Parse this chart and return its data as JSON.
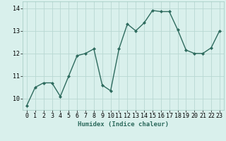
{
  "x": [
    0,
    1,
    2,
    3,
    4,
    5,
    6,
    7,
    8,
    9,
    10,
    11,
    12,
    13,
    14,
    15,
    16,
    17,
    18,
    19,
    20,
    21,
    22,
    23
  ],
  "y": [
    9.7,
    10.5,
    10.7,
    10.7,
    10.1,
    11.0,
    11.9,
    12.0,
    12.2,
    10.6,
    10.35,
    12.2,
    13.3,
    13.0,
    13.35,
    13.9,
    13.85,
    13.85,
    13.05,
    12.15,
    12.0,
    12.0,
    12.25,
    13.0
  ],
  "line_color": "#2e6b5e",
  "marker": "D",
  "marker_size": 2.0,
  "linewidth": 1.0,
  "bg_color": "#d9f0ec",
  "grid_color": "#b8d8d2",
  "xlabel": "Humidex (Indice chaleur)",
  "ylim": [
    9.5,
    14.3
  ],
  "yticks": [
    10,
    11,
    12,
    13,
    14
  ],
  "xticks": [
    0,
    1,
    2,
    3,
    4,
    5,
    6,
    7,
    8,
    9,
    10,
    11,
    12,
    13,
    14,
    15,
    16,
    17,
    18,
    19,
    20,
    21,
    22,
    23
  ],
  "xlabel_fontsize": 6.5,
  "tick_fontsize": 6.0
}
